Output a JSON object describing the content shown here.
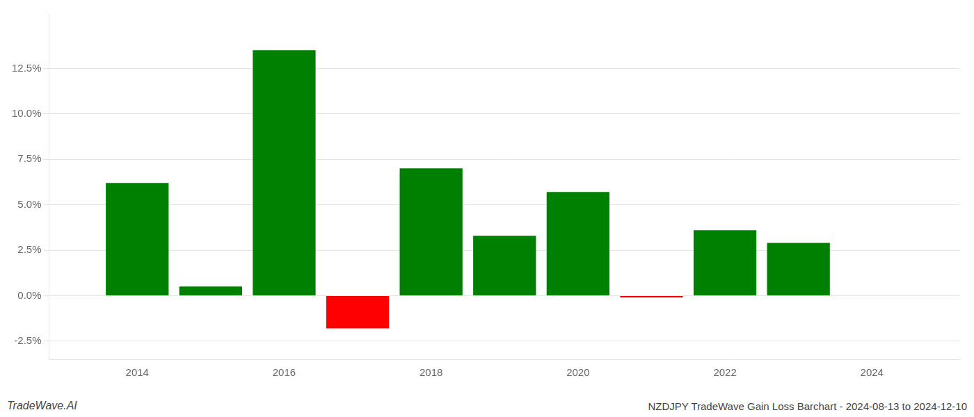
{
  "chart_data": {
    "type": "bar",
    "x": [
      2014,
      2015,
      2016,
      2017,
      2018,
      2019,
      2020,
      2021,
      2022,
      2023
    ],
    "values": [
      0.062,
      0.005,
      0.135,
      -0.018,
      0.07,
      0.033,
      0.057,
      -0.001,
      0.036,
      0.029
    ],
    "colors": [
      "#008000",
      "#008000",
      "#008000",
      "#ff0000",
      "#008000",
      "#008000",
      "#008000",
      "#ff0000",
      "#008000",
      "#008000"
    ],
    "xlim": [
      2012.8,
      2025.2
    ],
    "xticks": [
      2014,
      2016,
      2018,
      2020,
      2022,
      2024
    ],
    "ylim": [
      -0.035,
      0.155
    ],
    "yticks": [
      {
        "value": -0.025,
        "label": "-2.5%"
      },
      {
        "value": 0.0,
        "label": "0.0%"
      },
      {
        "value": 0.025,
        "label": "2.5%"
      },
      {
        "value": 0.05,
        "label": "5.0%"
      },
      {
        "value": 0.075,
        "label": "7.5%"
      },
      {
        "value": 0.1,
        "label": "10.0%"
      },
      {
        "value": 0.125,
        "label": "12.5%"
      }
    ],
    "grid": true,
    "annotations": [
      "TradeWave.AI",
      "NZDJPY TradeWave Gain Loss Barchart - 2024-08-13 to 2024-12-10"
    ]
  }
}
